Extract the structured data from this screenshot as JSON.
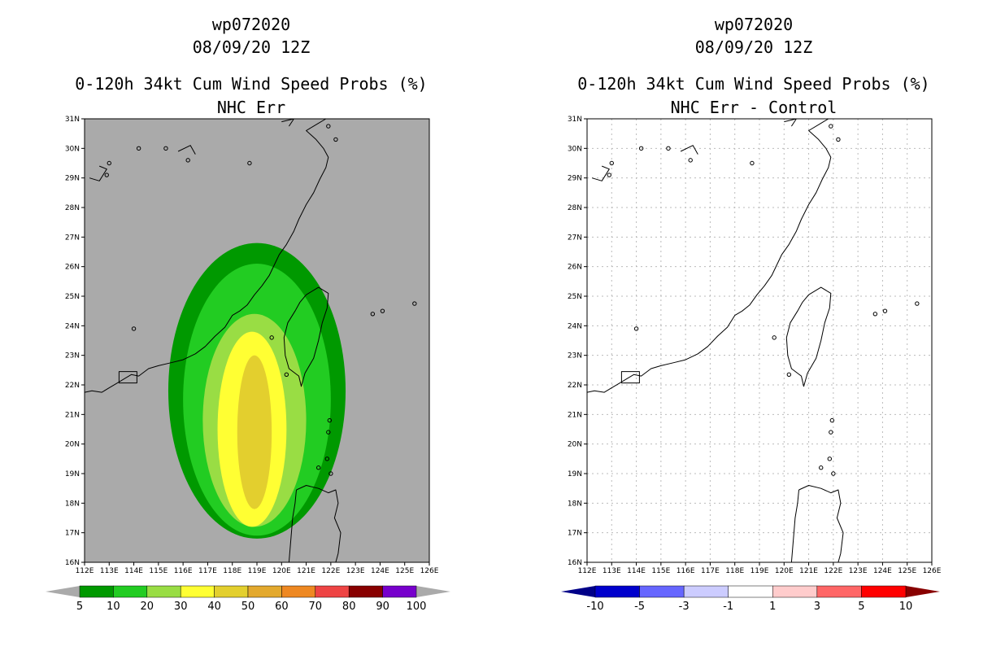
{
  "left_panel": {
    "title_line1": "wp072020",
    "title_line2": "08/09/20 12Z",
    "title_line3": "0-120h 34kt Cum Wind Speed Probs (%)",
    "title_line4": "NHC Err",
    "colorbar": {
      "labels": [
        "5",
        "10",
        "20",
        "30",
        "40",
        "50",
        "60",
        "70",
        "80",
        "90",
        "100"
      ],
      "colors": [
        "#009900",
        "#22cc22",
        "#99dd44",
        "#ffff33",
        "#e3cf2e",
        "#e3a92e",
        "#ee8822",
        "#ee4444",
        "#880000",
        "#7700cc"
      ]
    }
  },
  "right_panel": {
    "title_line1": "wp072020",
    "title_line2": "08/09/20 12Z",
    "title_line3": "0-120h 34kt Cum Wind Speed Probs (%)",
    "title_line4": "NHC Err - Control",
    "colorbar": {
      "labels": [
        "-10",
        "-5",
        "-3",
        "-1",
        "1",
        "3",
        "5",
        "10"
      ],
      "colors": [
        "#0000cc",
        "#6666ff",
        "#ccccff",
        "#ffffff",
        "#ffcccc",
        "#ff6666",
        "#ff0000"
      ]
    }
  },
  "map": {
    "lat_labels": [
      "31N",
      "30N",
      "29N",
      "28N",
      "27N",
      "26N",
      "25N",
      "24N",
      "23N",
      "22N",
      "21N",
      "20N",
      "19N",
      "18N",
      "17N",
      "16N"
    ],
    "lon_labels": [
      "112E",
      "113E",
      "114E",
      "115E",
      "116E",
      "117E",
      "118E",
      "119E",
      "120E",
      "121E",
      "122E",
      "123E",
      "124E",
      "125E",
      "126E"
    ],
    "background_left": "#aaaaaa",
    "background_right": "#ffffff"
  },
  "probability_contours": [
    {
      "level": "5",
      "color": "#009900",
      "center": [
        119.0,
        21.8
      ],
      "radii_deg": [
        3.6,
        5.0
      ]
    },
    {
      "level": "10",
      "color": "#22cc22",
      "center": [
        119.0,
        21.5
      ],
      "radii_deg": [
        3.0,
        4.6
      ]
    },
    {
      "level": "20",
      "color": "#99dd44",
      "center": [
        118.9,
        20.8
      ],
      "radii_deg": [
        2.1,
        3.6
      ]
    },
    {
      "level": "30",
      "color": "#ffff33",
      "center": [
        118.8,
        20.5
      ],
      "radii_deg": [
        1.4,
        3.3
      ]
    },
    {
      "level": "40",
      "color": "#e3cf2e",
      "center": [
        118.9,
        20.4
      ],
      "radii_deg": [
        0.7,
        2.6
      ]
    }
  ]
}
